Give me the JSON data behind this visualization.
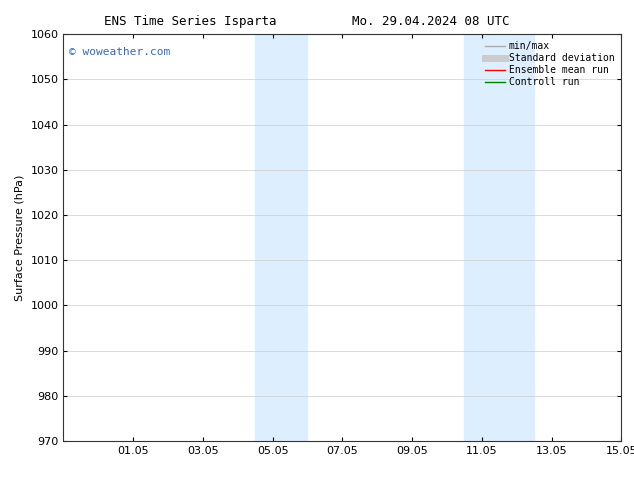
{
  "title_left": "ENS Time Series Isparta",
  "title_right": "Mo. 29.04.2024 08 UTC",
  "ylabel": "Surface Pressure (hPa)",
  "ylim": [
    970,
    1060
  ],
  "yticks": [
    970,
    980,
    990,
    1000,
    1010,
    1020,
    1030,
    1040,
    1050,
    1060
  ],
  "xlim_start": 29.0,
  "xlim_end": 45.0,
  "xtick_labels": [
    "01.05",
    "03.05",
    "05.05",
    "07.05",
    "09.05",
    "11.05",
    "13.05",
    "15.05"
  ],
  "xtick_positions": [
    31,
    33,
    35,
    37,
    39,
    41,
    43,
    45
  ],
  "shaded_bands": [
    {
      "x_start": 34.5,
      "x_end": 36.0
    },
    {
      "x_start": 40.5,
      "x_end": 42.5
    }
  ],
  "shaded_color": "#ddeeff",
  "watermark_text": "© woweather.com",
  "watermark_color": "#3366cc",
  "watermark_fontsize": 8,
  "legend_entries": [
    {
      "label": "min/max",
      "color": "#aaaaaa",
      "lw": 1.0
    },
    {
      "label": "Standard deviation",
      "color": "#cccccc",
      "lw": 5
    },
    {
      "label": "Ensemble mean run",
      "color": "red",
      "lw": 1.0
    },
    {
      "label": "Controll run",
      "color": "green",
      "lw": 1.0
    }
  ],
  "background_color": "#ffffff",
  "plot_bg_color": "#f5f8ff",
  "grid_color": "#cccccc",
  "title_fontsize": 9,
  "ylabel_fontsize": 8,
  "tick_fontsize": 8,
  "legend_fontsize": 7
}
